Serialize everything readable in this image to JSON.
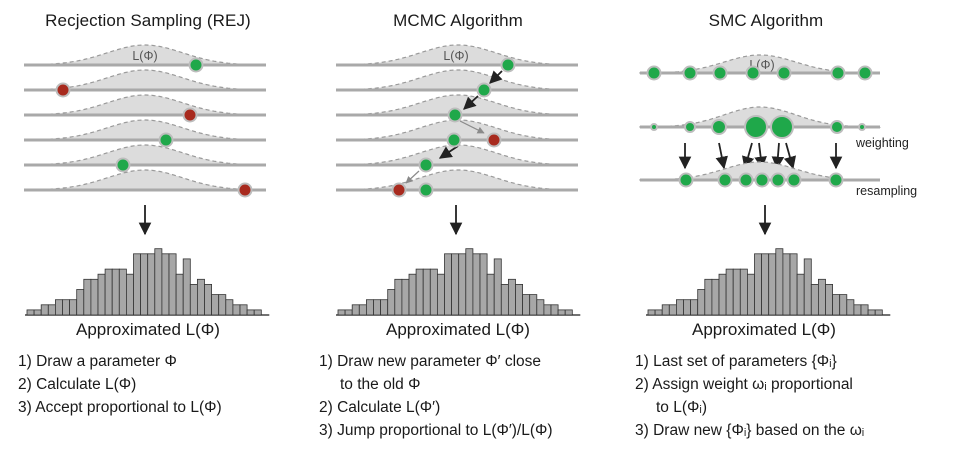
{
  "panels": [
    {
      "title": "Recjection Sampling (REJ)",
      "likelihood_label": "L(Φ)",
      "histogram_label": "Approximated L(Φ)",
      "steps": [
        {
          "text": "1) Draw a parameter Φ"
        },
        {
          "text": "2) Calculate L(Φ)"
        },
        {
          "text": "3) Accept proportional to L(Φ)"
        }
      ]
    },
    {
      "title": "MCMC Algorithm",
      "likelihood_label": "L(Φ)",
      "histogram_label": "Approximated L(Φ)",
      "steps": [
        {
          "text": "1) Draw new parameter Φ′ close",
          "cont": "to the old Φ"
        },
        {
          "text": "2) Calculate L(Φ′)"
        },
        {
          "text": "3) Jump proportional to L(Φ′)/L(Φ)"
        }
      ]
    },
    {
      "title": "SMC Algorithm",
      "likelihood_label": "L(Φ)",
      "histogram_label": "Approximated L(Φ)",
      "weighting_label": "weighting",
      "resampling_label": "resampling",
      "steps": [
        {
          "text": "1) Last set of parameters {Φᵢ}"
        },
        {
          "text": "2) Assign weight ωᵢ  proportional",
          "cont": "to L(Φᵢ)"
        },
        {
          "text": "3) Draw new {Φᵢ} based on the ωᵢ"
        }
      ]
    }
  ],
  "histogram_values": [
    1,
    1,
    2,
    2,
    3,
    3,
    3,
    5,
    7,
    7,
    8,
    9,
    9,
    9,
    8,
    12,
    12,
    12,
    13,
    12,
    12,
    8,
    11,
    6,
    7,
    6,
    4,
    4,
    3,
    2,
    2,
    1,
    1
  ],
  "colors": {
    "accepted": "#1fa84a",
    "rejected": "#a82a1e",
    "curve_fill": "#dcdcdc",
    "axis_line": "#a9a9a9",
    "bar_fill": "#a7a7a7"
  }
}
